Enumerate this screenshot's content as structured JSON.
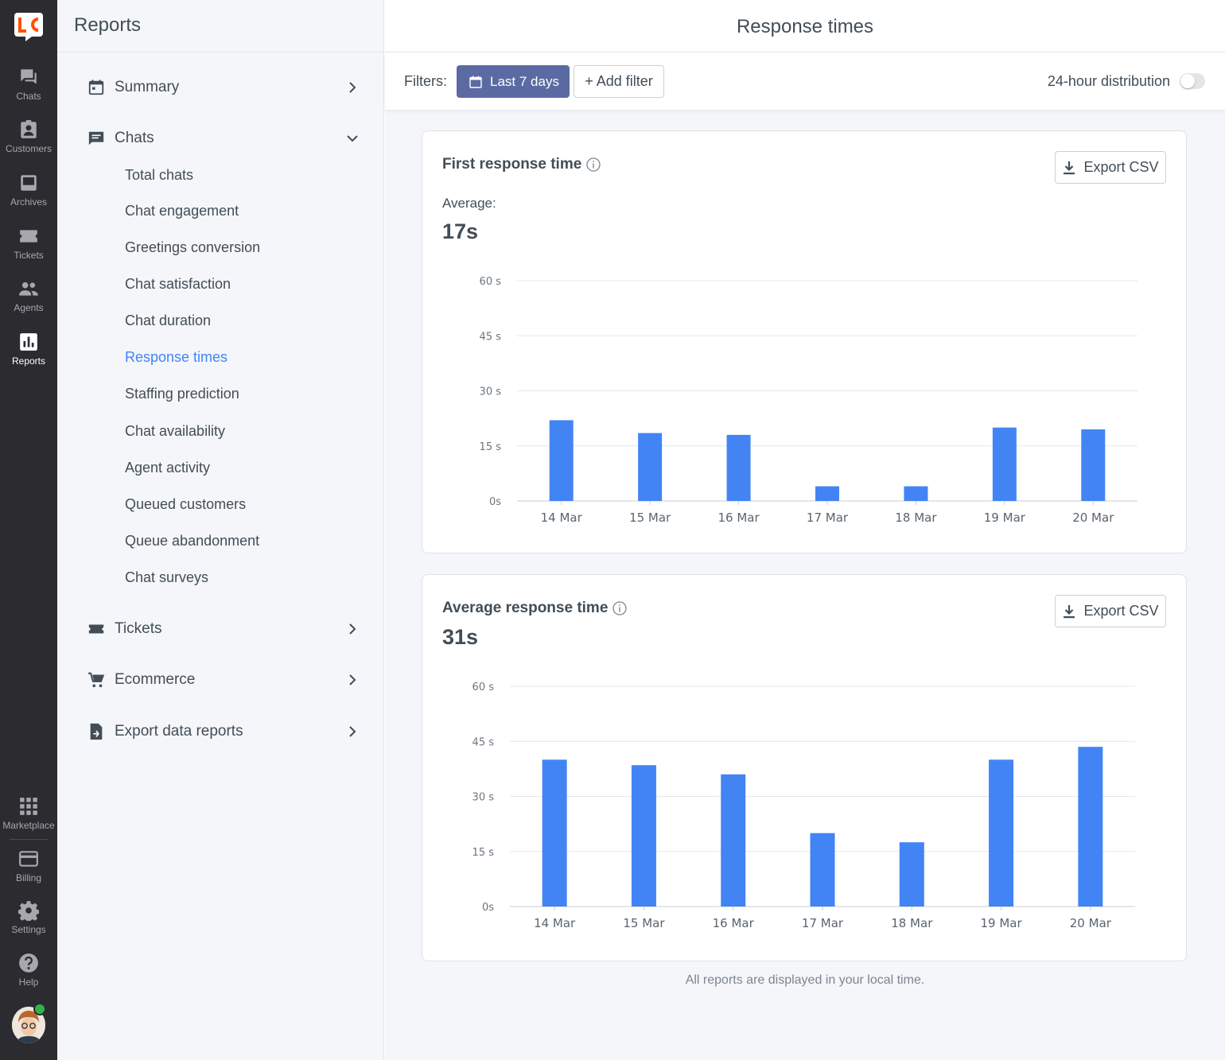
{
  "rail": {
    "logo": "LC",
    "items": [
      {
        "label": "Chats",
        "icon": "chats-icon"
      },
      {
        "label": "Customers",
        "icon": "customers-icon"
      },
      {
        "label": "Archives",
        "icon": "archives-icon"
      },
      {
        "label": "Tickets",
        "icon": "tickets-icon"
      },
      {
        "label": "Agents",
        "icon": "agents-icon"
      },
      {
        "label": "Reports",
        "icon": "reports-icon"
      }
    ],
    "bottom": [
      {
        "label": "Marketplace",
        "icon": "marketplace-icon"
      },
      {
        "label": "Billing",
        "icon": "billing-icon"
      },
      {
        "label": "Settings",
        "icon": "settings-icon"
      },
      {
        "label": "Help",
        "icon": "help-icon"
      }
    ],
    "active": "Reports"
  },
  "sidebar": {
    "title": "Reports",
    "groups": {
      "summary": "Summary",
      "chats": "Chats",
      "tickets": "Tickets",
      "ecommerce": "Ecommerce",
      "export": "Export data reports"
    },
    "chat_items": [
      "Total chats",
      "Chat engagement",
      "Greetings conversion",
      "Chat satisfaction",
      "Chat duration",
      "Response times",
      "Staffing prediction",
      "Chat availability",
      "Agent activity",
      "Queued customers",
      "Queue abandonment",
      "Chat surveys"
    ],
    "active_item": "Response times"
  },
  "header": {
    "title": "Response times"
  },
  "filters": {
    "label": "Filters:",
    "date_range": "Last 7 days",
    "add_filter": "+ Add filter",
    "distribution_label": "24-hour distribution",
    "distribution_on": false
  },
  "cards": {
    "first": {
      "title": "First response time",
      "export": "Export CSV",
      "avg_label": "Average:",
      "avg_value": "17s"
    },
    "average": {
      "title": "Average response time",
      "export": "Export CSV",
      "avg_value": "31s"
    }
  },
  "footnote": "All reports are displayed in your local time.",
  "colors": {
    "bar": "#4384f5",
    "accent": "#4384f5",
    "chip": "#5b6aa2"
  },
  "chart_data": [
    {
      "type": "bar",
      "title": "First response time",
      "categories": [
        "14 Mar",
        "15 Mar",
        "16 Mar",
        "17 Mar",
        "18 Mar",
        "19 Mar",
        "20 Mar"
      ],
      "values": [
        22,
        18.5,
        18,
        4,
        4,
        20,
        19.5
      ],
      "ylim": [
        0,
        60
      ],
      "yticks": [
        0,
        15,
        30,
        45,
        60
      ],
      "ytick_labels": [
        "0s",
        "15 s",
        "30 s",
        "45 s",
        "60 s"
      ],
      "grid": true
    },
    {
      "type": "bar",
      "title": "Average response time",
      "categories": [
        "14 Mar",
        "15 Mar",
        "16 Mar",
        "17 Mar",
        "18 Mar",
        "19 Mar",
        "20 Mar"
      ],
      "values": [
        40,
        38.5,
        36,
        20,
        17.5,
        40,
        43.5
      ],
      "ylim": [
        0,
        60
      ],
      "yticks": [
        0,
        15,
        30,
        45,
        60
      ],
      "ytick_labels": [
        "0s",
        "15 s",
        "30 s",
        "45 s",
        "60 s"
      ],
      "grid": true
    }
  ]
}
